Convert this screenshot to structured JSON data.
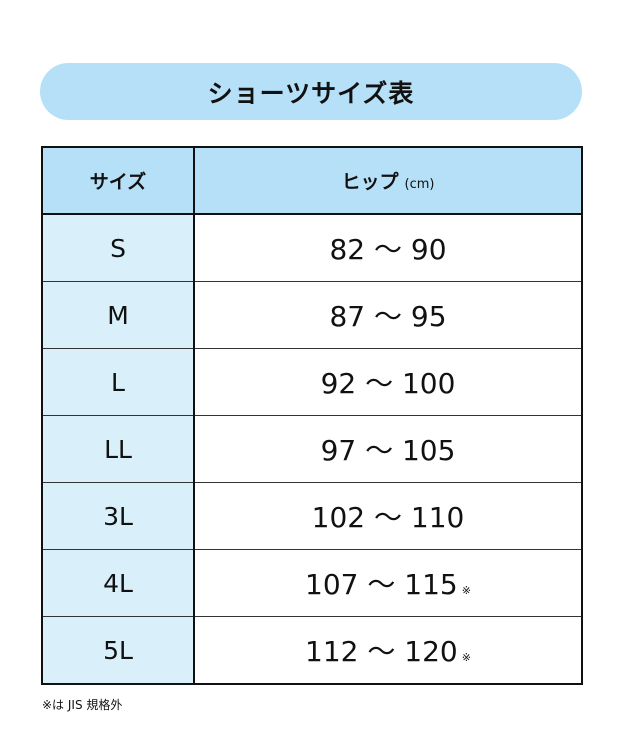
{
  "title": "ショーツサイズ表",
  "table": {
    "headers": {
      "size": "サイズ",
      "hip": "ヒップ",
      "hip_unit": "(cm)"
    },
    "rows": [
      {
        "size": "S",
        "hip": "82 〜 90",
        "mark": ""
      },
      {
        "size": "M",
        "hip": "87 〜 95",
        "mark": ""
      },
      {
        "size": "L",
        "hip": "92 〜 100",
        "mark": ""
      },
      {
        "size": "LL",
        "hip": "97 〜 105",
        "mark": ""
      },
      {
        "size": "3L",
        "hip": "102 〜 110",
        "mark": ""
      },
      {
        "size": "4L",
        "hip": "107 〜 115",
        "mark": "※"
      },
      {
        "size": "5L",
        "hip": "112 〜 120",
        "mark": "※"
      }
    ]
  },
  "footnote": "※は JIS 規格外",
  "colors": {
    "header_bg": "#b5e0f7",
    "size_col_bg": "#d9f0fb"
  }
}
